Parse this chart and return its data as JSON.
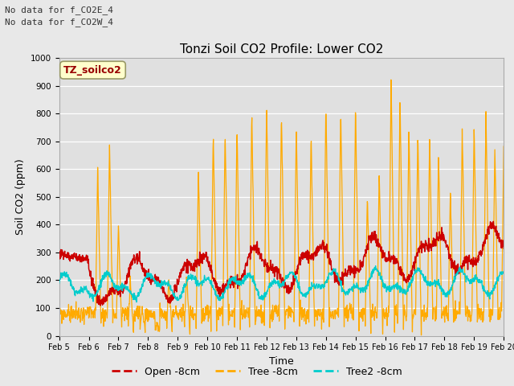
{
  "title": "Tonzi Soil CO2 Profile: Lower CO2",
  "ylabel": "Soil CO2 (ppm)",
  "xlabel": "Time",
  "ylim": [
    0,
    1000
  ],
  "note_line1": "No data for f_CO2E_4",
  "note_line2": "No data for f_CO2W_4",
  "legend_label_box": "TZ_soilco2",
  "legend_entries": [
    "Open -8cm",
    "Tree -8cm",
    "Tree2 -8cm"
  ],
  "open_color": "#cc0000",
  "tree_color": "#ffaa00",
  "tree2_color": "#00cccc",
  "bg_color": "#e8e8e8",
  "plot_bg_color": "#e0e0e0",
  "grid_color": "#ffffff",
  "xtick_labels": [
    "Feb 5",
    "Feb 6",
    "Feb 7",
    "Feb 8",
    "Feb 9",
    "Feb 10",
    "Feb 11",
    "Feb 12",
    "Feb 13",
    "Feb 14",
    "Feb 15",
    "Feb 16",
    "Feb 17",
    "Feb 18",
    "Feb 19",
    "Feb 20"
  ],
  "title_fontsize": 11,
  "axis_label_fontsize": 9,
  "tick_fontsize": 7,
  "legend_fontsize": 9,
  "note_fontsize": 8
}
